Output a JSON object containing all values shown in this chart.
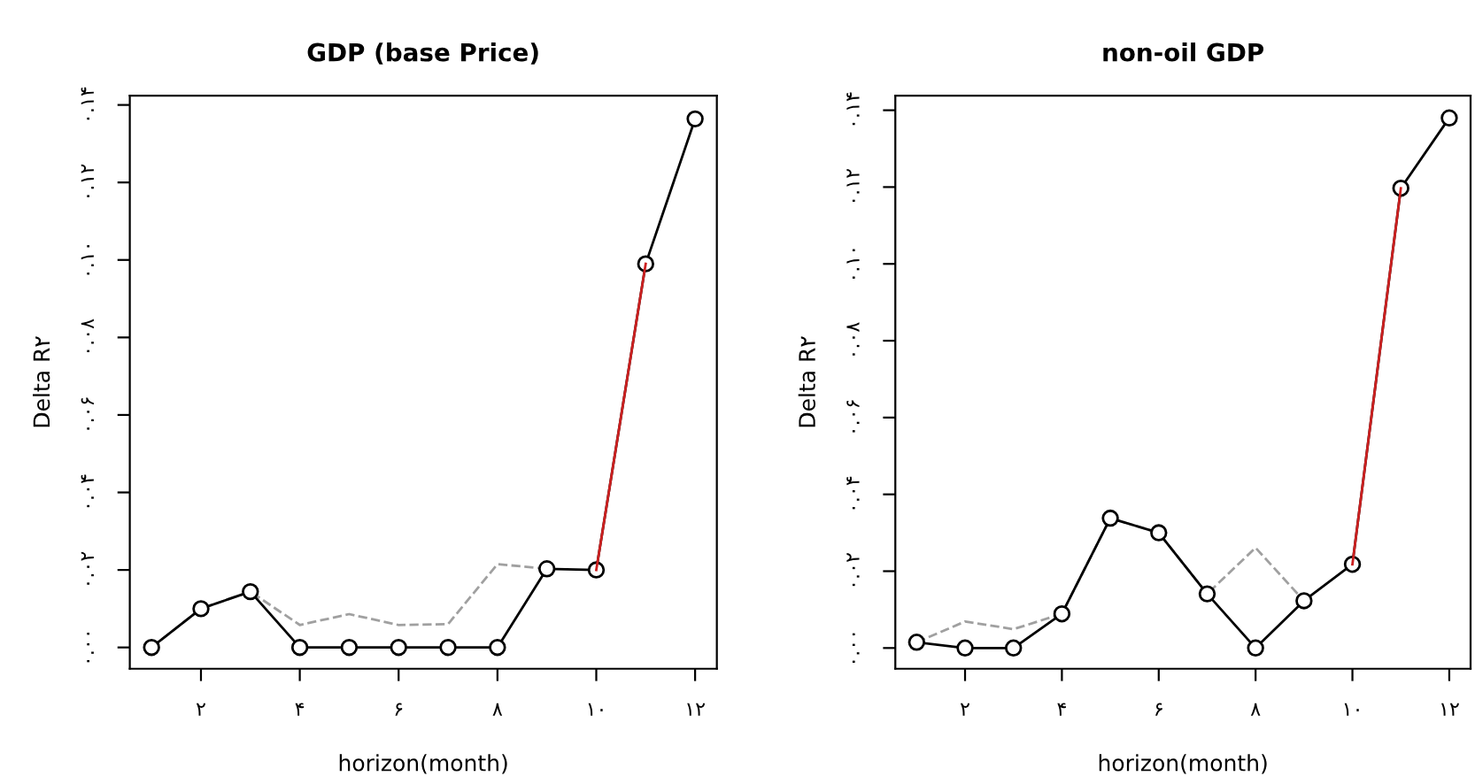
{
  "chart_data": [
    {
      "type": "line",
      "title": "GDP (base Price)",
      "xlabel": "horizon(month)",
      "ylabel": "Delta R۲",
      "grid": false,
      "xlim": [
        0.56,
        12.44
      ],
      "ylim": [
        -0.0055,
        0.1424
      ],
      "xticks": [
        {
          "value": 2,
          "label": "۲"
        },
        {
          "value": 4,
          "label": "۴"
        },
        {
          "value": 6,
          "label": "۶"
        },
        {
          "value": 8,
          "label": "۸"
        },
        {
          "value": 10,
          "label": "۱۰"
        },
        {
          "value": 12,
          "label": "۱۲"
        }
      ],
      "yticks": [
        {
          "value": 0,
          "label": "۰.۰۰"
        },
        {
          "value": 0.02,
          "label": "۰.۰۲"
        },
        {
          "value": 0.04,
          "label": "۰.۰۴"
        },
        {
          "value": 0.06,
          "label": "۰.۰۶"
        },
        {
          "value": 0.08,
          "label": "۰.۰۸"
        },
        {
          "value": 0.1,
          "label": "۰.۱۰"
        },
        {
          "value": 0.12,
          "label": "۰.۱۲"
        },
        {
          "value": 0.14,
          "label": "۰.۱۴"
        }
      ],
      "series": [
        {
          "color": "#a0a0a0",
          "line_style": "dashed",
          "marker": "none",
          "x": [
            1,
            2,
            3,
            4,
            5,
            6,
            7,
            8,
            9
          ],
          "values": [
            0,
            0.01,
            0.0144,
            0.0058,
            0.0086,
            0.0058,
            0.006,
            0.0215,
            0.0203
          ]
        },
        {
          "color": "#000000",
          "line_style": "solid",
          "marker": "circle",
          "x": [
            1,
            2,
            3,
            4,
            5,
            6,
            7,
            8,
            9,
            10,
            11,
            12
          ],
          "values": [
            0,
            0.01,
            0.0144,
            0,
            0,
            0,
            0,
            0,
            0.0203,
            0.02,
            0.099,
            0.1364
          ]
        },
        {
          "color": "#cc2020",
          "line_style": "solid",
          "marker": "none",
          "x": [
            10,
            11
          ],
          "values": [
            0.02,
            0.099
          ]
        }
      ]
    },
    {
      "type": "line",
      "title": "non-oil GDP",
      "xlabel": "horizon(month)",
      "ylabel": "Delta R۲",
      "grid": false,
      "xlim": [
        0.56,
        12.44
      ],
      "ylim": [
        -0.0054,
        0.1438
      ],
      "xticks": [
        {
          "value": 2,
          "label": "۲"
        },
        {
          "value": 4,
          "label": "۴"
        },
        {
          "value": 6,
          "label": "۶"
        },
        {
          "value": 8,
          "label": "۸"
        },
        {
          "value": 10,
          "label": "۱۰"
        },
        {
          "value": 12,
          "label": "۱۲"
        }
      ],
      "yticks": [
        {
          "value": 0,
          "label": "۰.۰۰"
        },
        {
          "value": 0.02,
          "label": "۰.۰۲"
        },
        {
          "value": 0.04,
          "label": "۰.۰۴"
        },
        {
          "value": 0.06,
          "label": "۰.۰۶"
        },
        {
          "value": 0.08,
          "label": "۰.۰۸"
        },
        {
          "value": 0.1,
          "label": "۰.۱۰"
        },
        {
          "value": 0.12,
          "label": "۰.۱۲"
        },
        {
          "value": 0.14,
          "label": "۰.۱۴"
        }
      ],
      "series": [
        {
          "color": "#a0a0a0",
          "line_style": "dashed",
          "marker": "none",
          "x": [
            1,
            2,
            3,
            4,
            5,
            6,
            7,
            8,
            9
          ],
          "values": [
            0.0015,
            0.0069,
            0.0049,
            0.0089,
            0.0338,
            0.03,
            0.0141,
            0.0261,
            0.0123
          ]
        },
        {
          "color": "#000000",
          "line_style": "solid",
          "marker": "circle",
          "x": [
            1,
            2,
            3,
            4,
            5,
            6,
            7,
            8,
            9,
            10,
            11,
            12
          ],
          "values": [
            0.0015,
            0,
            0,
            0.0089,
            0.0338,
            0.03,
            0.0141,
            0,
            0.0123,
            0.0218,
            0.1197,
            0.138
          ]
        },
        {
          "color": "#cc2020",
          "line_style": "solid",
          "marker": "none",
          "x": [
            10,
            11
          ],
          "values": [
            0.0218,
            0.1197
          ]
        }
      ]
    }
  ]
}
